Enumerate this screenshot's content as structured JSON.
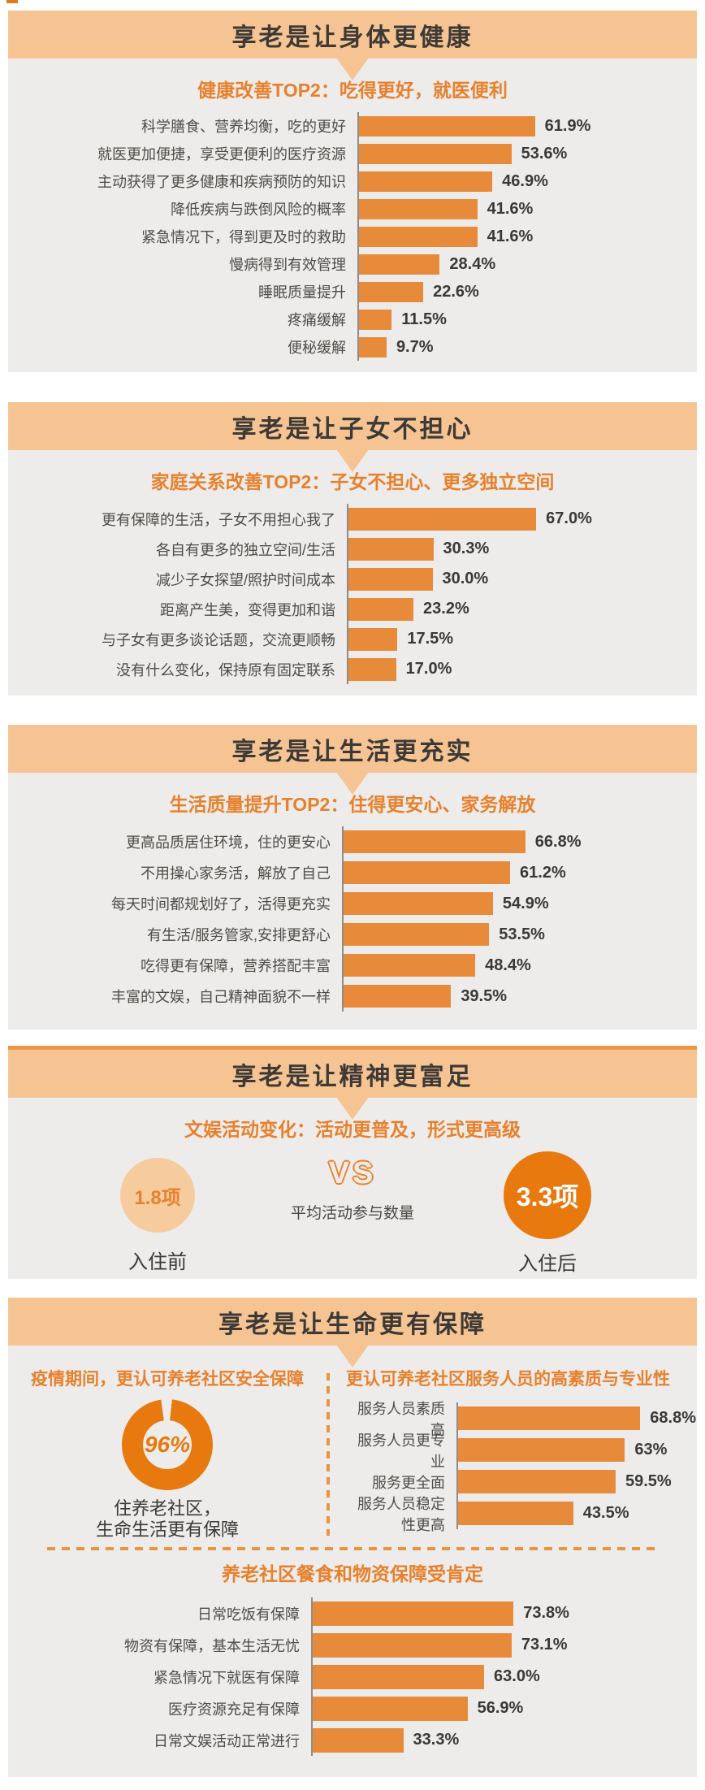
{
  "colors": {
    "header_bg": "#f6c493",
    "section_bg": "#edecea",
    "bar": "#e78b3a",
    "accent_text": "#e8802c",
    "donut": "#e8790f",
    "circle_light": "#f6cb9e",
    "dash_line": "#e8953f",
    "title_text": "#3c3936",
    "label_text": "#4f4c48",
    "value_text": "#3b3835"
  },
  "chart_data": [
    {
      "type": "bar",
      "orientation": "horizontal",
      "unit": "%",
      "title": "享老是让身体更健康",
      "subtitle": "健康改善TOP2：吃得更好，就医便利",
      "categories": [
        "科学膳食、营养均衡，吃的更好",
        "就医更加便捷，享受更便利的医疗资源",
        "主动获得了更多健康和疾病预防的知识",
        "降低疾病与跌倒风险的概率",
        "紧急情况下，得到更及时的救助",
        "慢病得到有效管理",
        "睡眠质量提升",
        "疼痛缓解",
        "便秘缓解"
      ],
      "values": [
        61.9,
        53.6,
        46.9,
        41.6,
        41.6,
        28.4,
        22.6,
        11.5,
        9.7
      ],
      "display": [
        "61.9%",
        "53.6%",
        "46.9%",
        "41.6%",
        "41.6%",
        "28.4%",
        "22.6%",
        "11.5%",
        "9.7%"
      ]
    },
    {
      "type": "bar",
      "orientation": "horizontal",
      "unit": "%",
      "title": "享老是让子女不担心",
      "subtitle": "家庭关系改善TOP2：子女不担心、更多独立空间",
      "categories": [
        "更有保障的生活，子女不用担心我了",
        "各自有更多的独立空间/生活",
        "减少子女探望/照护时间成本",
        "距离产生美，变得更加和谐",
        "与子女有更多谈论话题，交流更顺畅",
        "没有什么变化，保持原有固定联系"
      ],
      "values": [
        67.0,
        30.3,
        30.0,
        23.2,
        17.5,
        17.0
      ],
      "display": [
        "67.0%",
        "30.3%",
        "30.0%",
        "23.2%",
        "17.5%",
        "17.0%"
      ]
    },
    {
      "type": "bar",
      "orientation": "horizontal",
      "unit": "%",
      "title": "享老是让生活更充实",
      "subtitle": "生活质量提升TOP2：住得更安心、家务解放",
      "categories": [
        "更高品质居住环境，住的更安心",
        "不用操心家务活，解放了自己",
        "每天时间都规划好了，活得更充实",
        "有生活/服务管家,安排更舒心",
        "吃得更有保障，营养搭配丰富",
        "丰富的文娱，自己精神面貌不一样"
      ],
      "values": [
        66.8,
        61.2,
        54.9,
        53.5,
        48.4,
        39.5
      ],
      "display": [
        "66.8%",
        "61.2%",
        "54.9%",
        "53.5%",
        "48.4%",
        "39.5%"
      ]
    },
    {
      "type": "comparison",
      "title": "享老是让精神更富足",
      "subtitle": "文娱活动变化：活动更普及，形式更高级",
      "before_value": "1.8项",
      "before_label": "入住前",
      "vs_label": "VS",
      "metric_label": "平均活动参与数量",
      "after_value": "3.3项",
      "after_label": "入住后"
    },
    {
      "type": "donut",
      "title": "享老是让生命更有保障",
      "heading": "疫情期间，更认可养老社区安全保障",
      "value": 96,
      "unit": "%",
      "display": "96%",
      "caption_line1": "住养老社区，",
      "caption_line2": "生命生活更有保障"
    },
    {
      "type": "bar",
      "orientation": "horizontal",
      "unit": "%",
      "heading": "更认可养老社区服务人员的高素质与专业性",
      "categories": [
        "服务人员素质高",
        "服务人员更专业",
        "服务更全面",
        "服务人员稳定性更高"
      ],
      "values": [
        68.8,
        63,
        59.5,
        43.5
      ],
      "display": [
        "68.8%",
        "63%",
        "59.5%",
        "43.5%"
      ]
    },
    {
      "type": "bar",
      "orientation": "horizontal",
      "unit": "%",
      "heading": "养老社区餐食和物资保障受肯定",
      "categories": [
        "日常吃饭有保障",
        "物资有保障，基本生活无忧",
        "紧急情况下就医有保障",
        "医疗资源充足有保障",
        "日常文娱活动正常进行"
      ],
      "values": [
        73.8,
        73.1,
        63.0,
        56.9,
        33.3
      ],
      "display": [
        "73.8%",
        "73.1%",
        "63.0%",
        "56.9%",
        "33.3%"
      ]
    }
  ]
}
